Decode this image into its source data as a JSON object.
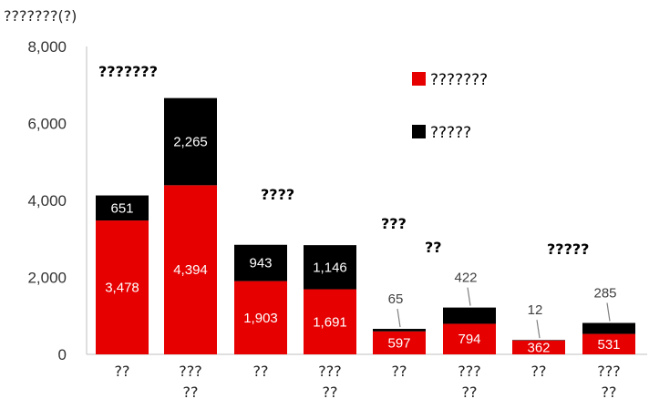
{
  "chart_data": {
    "type": "bar",
    "stacked": true,
    "title": "???????(?)",
    "ylim": [
      0,
      8000
    ],
    "yticks": [
      "0",
      "2,000",
      "4,000",
      "6,000",
      "8,000"
    ],
    "yticks_values": [
      0,
      2000,
      4000,
      6000,
      8000
    ],
    "categories": [
      "??",
      "?????",
      "??",
      "?????",
      "??",
      "?????",
      "??",
      "?????"
    ],
    "groups": [
      "???????",
      "????",
      "?????",
      "?????"
    ],
    "series": [
      {
        "name": "???????",
        "color": "#e60000",
        "values": [
          3478,
          4394,
          1903,
          1691,
          597,
          794,
          362,
          531
        ],
        "labels": [
          "3,478",
          "4,394",
          "1,903",
          "1,691",
          "597",
          "794",
          "362",
          "531"
        ]
      },
      {
        "name": "?????",
        "color": "#000000",
        "values": [
          651,
          2265,
          943,
          1146,
          65,
          422,
          12,
          285
        ],
        "labels": [
          "651",
          "2,265",
          "943",
          "1,146",
          "65",
          "422",
          "12",
          "285"
        ]
      }
    ],
    "legend_position": "top-right",
    "grid": false
  }
}
